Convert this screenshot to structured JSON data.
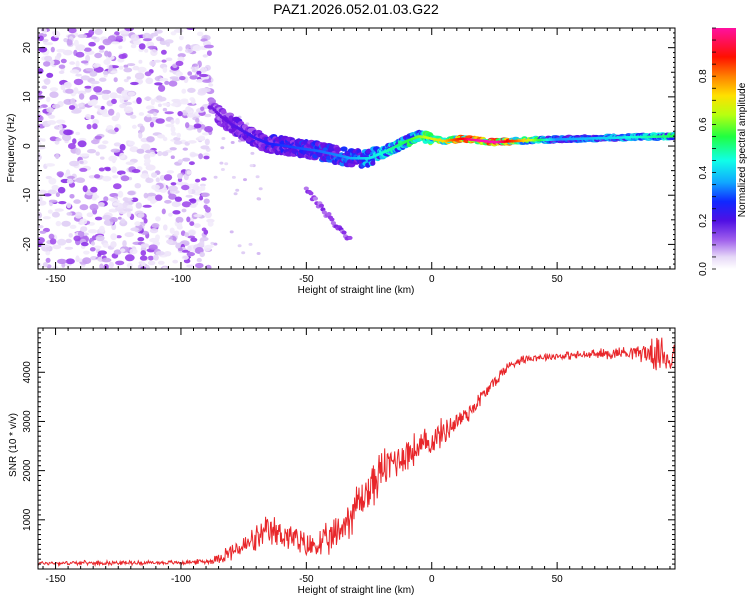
{
  "title": "PAZ1.2026.052.01.03.G22",
  "colors": {
    "snr_line": "#e8262a",
    "colormap": [
      "#ffffff",
      "#dcc8f4",
      "#9a40ea",
      "#6a10e0",
      "#1a20ff",
      "#10a8ff",
      "#10ffe0",
      "#20ff40",
      "#c8ff10",
      "#ffd000",
      "#ff5000",
      "#ff0000",
      "#ff10b0"
    ]
  },
  "chart_data": [
    {
      "type": "heatmap",
      "name": "spectrogram",
      "xlabel": "Height of straight line (km)",
      "ylabel": "Frequency (Hz)",
      "xlim": [
        -157,
        97
      ],
      "ylim": [
        -25,
        24
      ],
      "xticks": [
        -150,
        -100,
        -50,
        0,
        50
      ],
      "xtick_labels": [
        "-150",
        "-100",
        "-50",
        "0",
        "50"
      ],
      "yticks": [
        -20,
        -10,
        0,
        10,
        20
      ],
      "ytick_labels": [
        "-20",
        "-10",
        "0",
        "10",
        "20"
      ],
      "colorbar": {
        "label": "Normalized spectral amplitude",
        "range": [
          0,
          1
        ],
        "ticks": [
          0.0,
          0.2,
          0.4,
          0.6,
          0.8
        ],
        "tick_labels": [
          "0.0",
          "0.2",
          "0.4",
          "0.6",
          "0.8"
        ]
      },
      "noise_region": {
        "x_range": [
          -157,
          -88
        ],
        "freq_range": [
          -25,
          24
        ],
        "amplitude_range": [
          0.03,
          0.2
        ]
      },
      "ridge": [
        {
          "x": -88,
          "f": 8
        },
        {
          "x": -84,
          "f": 6
        },
        {
          "x": -80,
          "f": 4.5
        },
        {
          "x": -75,
          "f": 3
        },
        {
          "x": -70,
          "f": 1.5
        },
        {
          "x": -65,
          "f": 0.5
        },
        {
          "x": -58,
          "f": 0
        },
        {
          "x": -52,
          "f": -0.5
        },
        {
          "x": -45,
          "f": -1
        },
        {
          "x": -38,
          "f": -1.8
        },
        {
          "x": -32,
          "f": -2.5
        },
        {
          "x": -25,
          "f": -2.5
        },
        {
          "x": -18,
          "f": -1
        },
        {
          "x": -10,
          "f": 1
        },
        {
          "x": -5,
          "f": 2
        },
        {
          "x": 0,
          "f": 1.5
        },
        {
          "x": 5,
          "f": 1
        },
        {
          "x": 12,
          "f": 1.5
        },
        {
          "x": 25,
          "f": 0.8
        },
        {
          "x": 40,
          "f": 1.2
        },
        {
          "x": 60,
          "f": 1.5
        },
        {
          "x": 80,
          "f": 1.8
        },
        {
          "x": 97,
          "f": 2
        }
      ],
      "ridge_amplitude": [
        {
          "x": -88,
          "a": 0.2
        },
        {
          "x": -60,
          "a": 0.3
        },
        {
          "x": -35,
          "a": 0.35
        },
        {
          "x": -10,
          "a": 0.5
        },
        {
          "x": 5,
          "a": 0.65
        },
        {
          "x": 15,
          "a": 0.85
        },
        {
          "x": 25,
          "a": 0.9
        },
        {
          "x": 35,
          "a": 0.7
        },
        {
          "x": 50,
          "a": 0.35
        },
        {
          "x": 70,
          "a": 0.4
        },
        {
          "x": 97,
          "a": 0.5
        }
      ],
      "secondary_branch": [
        {
          "x": -50,
          "f": -9
        },
        {
          "x": -45,
          "f": -12
        },
        {
          "x": -40,
          "f": -15
        },
        {
          "x": -35,
          "f": -18
        },
        {
          "x": -32,
          "f": -19.5
        }
      ]
    },
    {
      "type": "line",
      "name": "snr",
      "xlabel": "Height of straight line (km)",
      "ylabel": "SNR (10 * v/v)",
      "xlim": [
        -157,
        97
      ],
      "ylim": [
        0,
        4900
      ],
      "xticks": [
        -150,
        -100,
        -50,
        0,
        50
      ],
      "xtick_labels": [
        "-150",
        "-100",
        "-50",
        "0",
        "50"
      ],
      "yticks": [
        1000,
        2000,
        3000,
        4000
      ],
      "ytick_labels": [
        "1000",
        "2000",
        "3000",
        "4000"
      ],
      "envelope": {
        "x": [
          -157,
          -100,
          -88,
          -82,
          -75,
          -65,
          -58,
          -50,
          -45,
          -40,
          -35,
          -30,
          -25,
          -20,
          -15,
          -10,
          -5,
          0,
          5,
          10,
          15,
          20,
          25,
          30,
          35,
          40,
          50,
          60,
          70,
          80,
          85,
          90,
          97
        ],
        "mean": [
          120,
          130,
          160,
          300,
          450,
          750,
          700,
          450,
          500,
          600,
          900,
          1300,
          1600,
          2000,
          2200,
          2350,
          2450,
          2600,
          2800,
          3000,
          3200,
          3500,
          3800,
          4100,
          4250,
          4300,
          4330,
          4350,
          4380,
          4420,
          4400,
          4350,
          4300
        ],
        "noise": [
          50,
          50,
          70,
          200,
          280,
          400,
          380,
          330,
          360,
          420,
          500,
          550,
          560,
          520,
          480,
          450,
          420,
          380,
          330,
          290,
          250,
          200,
          170,
          140,
          110,
          100,
          90,
          110,
          140,
          170,
          250,
          400,
          600
        ]
      }
    }
  ]
}
